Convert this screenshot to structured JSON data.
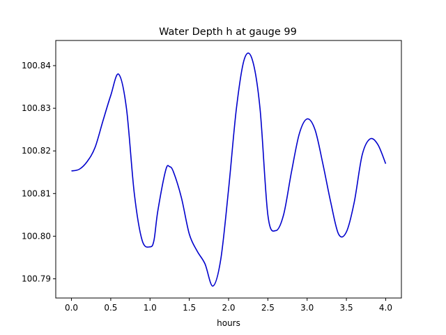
{
  "chart_data": {
    "type": "line",
    "title": "Water Depth h at gauge 99",
    "xlabel": "hours",
    "ylabel": "",
    "xlim": [
      -0.2,
      4.2
    ],
    "ylim": [
      100.7855,
      100.8459
    ],
    "xticks": [
      0.0,
      0.5,
      1.0,
      1.5,
      2.0,
      2.5,
      3.0,
      3.5,
      4.0
    ],
    "xtick_labels": [
      "0.0",
      "0.5",
      "1.0",
      "1.5",
      "2.0",
      "2.5",
      "3.0",
      "3.5",
      "4.0"
    ],
    "yticks": [
      100.79,
      100.8,
      100.81,
      100.82,
      100.83,
      100.84
    ],
    "ytick_labels": [
      "100.79",
      "100.80",
      "100.81",
      "100.82",
      "100.83",
      "100.84"
    ],
    "grid": false,
    "series": [
      {
        "color": "#0000cc",
        "x": [
          0.0,
          0.1,
          0.2,
          0.3,
          0.4,
          0.5,
          0.6,
          0.7,
          0.8,
          0.9,
          1.0,
          1.05,
          1.1,
          1.2,
          1.25,
          1.3,
          1.4,
          1.5,
          1.6,
          1.7,
          1.8,
          1.9,
          2.0,
          2.1,
          2.2,
          2.3,
          2.4,
          2.5,
          2.6,
          2.7,
          2.8,
          2.9,
          3.0,
          3.1,
          3.2,
          3.3,
          3.4,
          3.5,
          3.6,
          3.7,
          3.8,
          3.9,
          4.0
        ],
        "y": [
          100.8153,
          100.8157,
          100.8175,
          100.8208,
          100.827,
          100.833,
          100.838,
          100.83,
          100.81,
          100.799,
          100.7975,
          100.799,
          100.806,
          100.8155,
          100.8163,
          100.815,
          100.809,
          100.8005,
          100.7965,
          100.7935,
          100.7883,
          100.7945,
          100.811,
          100.83,
          100.8415,
          100.8415,
          100.83,
          100.805,
          100.8013,
          100.805,
          100.815,
          100.824,
          100.8275,
          100.825,
          100.817,
          100.808,
          100.8005,
          100.801,
          100.808,
          100.819,
          100.8228,
          100.8215,
          100.817
        ]
      }
    ]
  }
}
